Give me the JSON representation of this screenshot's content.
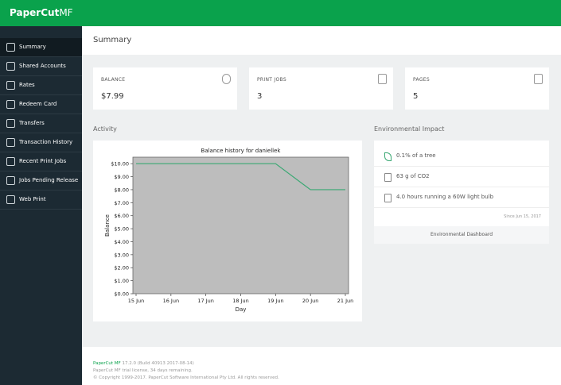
{
  "header": {
    "logo": "PaperCut",
    "logo_suffix": "MF"
  },
  "nav": [
    "Summary",
    "Shared Accounts",
    "Rates",
    "Redeem Card",
    "Transfers",
    "Transaction History",
    "Recent Print Jobs",
    "Jobs Pending Release",
    "Web Print"
  ],
  "page_title": "Summary",
  "cards": [
    {
      "label": "BALANCE",
      "value": "$7.99"
    },
    {
      "label": "PRINT JOBS",
      "value": 3
    },
    {
      "label": "PAGES",
      "value": 5
    }
  ],
  "activity": {
    "heading": "Activity"
  },
  "chart_data": {
    "type": "line",
    "title": "Balance history for daniellek",
    "x_label": "Day",
    "y_label": "Balance",
    "categories": [
      "15 Jun",
      "16 Jun",
      "17 Jun",
      "18 Jun",
      "19 Jun",
      "20 Jun",
      "21 Jun"
    ],
    "series": [
      {
        "name": "Balance",
        "color": "#3aa873",
        "values": [
          10,
          10,
          10,
          10,
          10,
          8,
          8
        ]
      }
    ],
    "ylim": [
      0,
      10.5
    ],
    "yticks": [
      {
        "value": 0,
        "label": "$0.00"
      },
      {
        "value": 1,
        "label": "$1.00"
      },
      {
        "value": 2,
        "label": "$2.00"
      },
      {
        "value": 3,
        "label": "$3.00"
      },
      {
        "value": 4,
        "label": "$4.00"
      },
      {
        "value": 5,
        "label": "$5.00"
      },
      {
        "value": 6,
        "label": "$6.00"
      },
      {
        "value": 7,
        "label": "$7.00"
      },
      {
        "value": 8,
        "label": "$8.00"
      },
      {
        "value": 9,
        "label": "$9.00"
      },
      {
        "value": 10,
        "label": "$10.00"
      }
    ],
    "grid": false
  },
  "environment": {
    "heading": "Environmental Impact",
    "items": [
      "0.1% of a tree",
      "63 g of CO2",
      "4.0 hours running a 60W light bulb"
    ],
    "since": "Since Jun 15, 2017",
    "link": "Environmental Dashboard"
  },
  "footer": {
    "product": "PaperCut MF",
    "version": "17.2.0 (Build 40913 2017-08-14)",
    "license": "PaperCut MF trial license, 34 days remaining.",
    "copyright": "© Copyright 1999-2017. PaperCut Software International Pty Ltd. All rights reserved."
  }
}
